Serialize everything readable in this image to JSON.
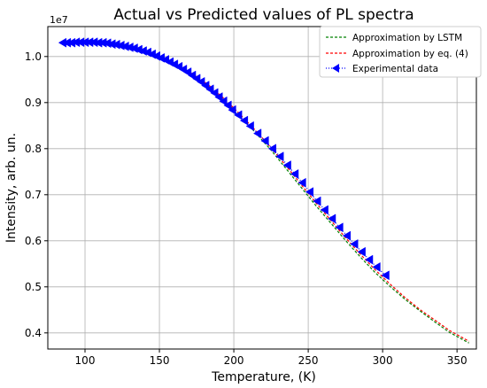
{
  "chart_data": {
    "type": "line",
    "title": "Actual vs Predicted values of PL spectra",
    "xlabel": "Temperature, (K)",
    "ylabel": "Intensity, arb. un.",
    "y_offset_label": "1e7",
    "xlim": [
      75,
      363
    ],
    "ylim": [
      0.365,
      1.065
    ],
    "x_ticks": [
      100,
      150,
      200,
      250,
      300,
      350
    ],
    "y_ticks": [
      0.4,
      0.5,
      0.6,
      0.7,
      0.8,
      0.9,
      1.0
    ],
    "y_tick_labels": [
      "0.4",
      "0.5",
      "0.6",
      "0.7",
      "0.8",
      "0.9",
      "1.0"
    ],
    "grid": true,
    "legend_position": "top-right",
    "series": [
      {
        "name": "Approximation by LSTM",
        "style": "dashed",
        "color": "#008000",
        "x": [
          85,
          95,
          105,
          115,
          125,
          135,
          145,
          155,
          165,
          175,
          185,
          195,
          205,
          215,
          225,
          235,
          245,
          255,
          265,
          275,
          285,
          295,
          305,
          315,
          325,
          335,
          345,
          358
        ],
        "y": [
          1.03,
          1.031,
          1.03,
          1.027,
          1.022,
          1.014,
          1.003,
          0.99,
          0.975,
          0.955,
          0.93,
          0.9,
          0.868,
          0.833,
          0.797,
          0.757,
          0.717,
          0.677,
          0.639,
          0.601,
          0.565,
          0.531,
          0.501,
          0.473,
          0.448,
          0.424,
          0.401,
          0.378
        ]
      },
      {
        "name": "Approximation by eq. (4)",
        "style": "dashed",
        "color": "#ff0000",
        "x": [
          85,
          95,
          105,
          115,
          125,
          135,
          145,
          155,
          165,
          175,
          185,
          195,
          205,
          215,
          225,
          235,
          245,
          255,
          265,
          275,
          285,
          295,
          305,
          315,
          325,
          335,
          345,
          358
        ],
        "y": [
          1.03,
          1.031,
          1.031,
          1.028,
          1.023,
          1.015,
          1.004,
          0.991,
          0.976,
          0.957,
          0.933,
          0.904,
          0.872,
          0.838,
          0.802,
          0.763,
          0.723,
          0.683,
          0.645,
          0.607,
          0.571,
          0.537,
          0.506,
          0.477,
          0.451,
          0.428,
          0.405,
          0.382
        ]
      },
      {
        "name": "Experimental data",
        "style": "dotted-markers",
        "color": "#0000ff",
        "marker": "triangle-left",
        "x": [
          85,
          88,
          91,
          94,
          97,
          100,
          103,
          106,
          109,
          112,
          115,
          118,
          121,
          124,
          127,
          130,
          133,
          136,
          139,
          142,
          145,
          148,
          151,
          154,
          157,
          160,
          163,
          166,
          169,
          172,
          175,
          178,
          181,
          184,
          187,
          190,
          193,
          196,
          199,
          203,
          207,
          211,
          216,
          221,
          226,
          231,
          236,
          241,
          246,
          251,
          256,
          261,
          266,
          271,
          276,
          281,
          286,
          291,
          296,
          302
        ],
        "y": [
          1.03,
          1.03,
          1.03,
          1.031,
          1.031,
          1.031,
          1.031,
          1.031,
          1.03,
          1.03,
          1.029,
          1.027,
          1.026,
          1.024,
          1.022,
          1.02,
          1.018,
          1.015,
          1.012,
          1.009,
          1.005,
          1.001,
          0.997,
          0.993,
          0.988,
          0.983,
          0.978,
          0.972,
          0.966,
          0.959,
          0.952,
          0.945,
          0.937,
          0.929,
          0.921,
          0.912,
          0.903,
          0.894,
          0.884,
          0.873,
          0.861,
          0.849,
          0.833,
          0.817,
          0.8,
          0.783,
          0.764,
          0.745,
          0.726,
          0.706,
          0.686,
          0.667,
          0.648,
          0.629,
          0.611,
          0.593,
          0.576,
          0.559,
          0.543,
          0.525
        ]
      }
    ]
  }
}
